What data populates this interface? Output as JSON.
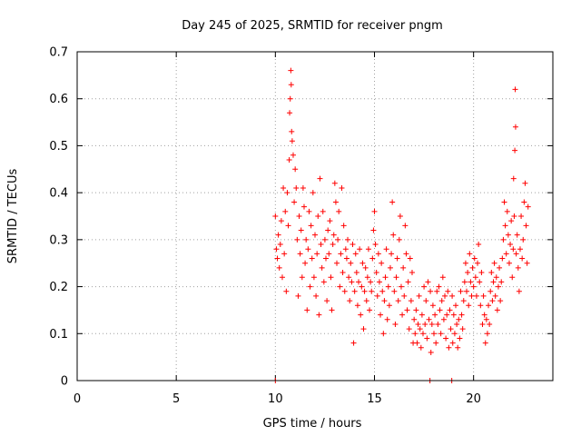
{
  "chart_data": {
    "type": "scatter",
    "title": "Day 245 of 2025, SRMTID for receiver pngm",
    "xlabel": "GPS time / hours",
    "ylabel": "SRMTID / TECUs",
    "xlim": [
      0,
      24
    ],
    "ylim": [
      0,
      0.7
    ],
    "xticks": [
      0,
      5,
      10,
      15,
      20
    ],
    "yticks": [
      0,
      0.1,
      0.2,
      0.3,
      0.4,
      0.5,
      0.6,
      0.7
    ],
    "grid": true,
    "marker": "+",
    "color": "#ff0000",
    "series": [
      {
        "name": "SRMTID",
        "points": [
          [
            10.0,
            0.0
          ],
          [
            10.0,
            0.35
          ],
          [
            10.05,
            0.28
          ],
          [
            10.1,
            0.26
          ],
          [
            10.15,
            0.31
          ],
          [
            10.2,
            0.24
          ],
          [
            10.25,
            0.29
          ],
          [
            10.3,
            0.34
          ],
          [
            10.35,
            0.22
          ],
          [
            10.4,
            0.41
          ],
          [
            10.45,
            0.27
          ],
          [
            10.5,
            0.36
          ],
          [
            10.55,
            0.19
          ],
          [
            10.6,
            0.4
          ],
          [
            10.65,
            0.33
          ],
          [
            10.7,
            0.47
          ],
          [
            10.72,
            0.57
          ],
          [
            10.75,
            0.6
          ],
          [
            10.78,
            0.66
          ],
          [
            10.8,
            0.63
          ],
          [
            10.82,
            0.53
          ],
          [
            10.85,
            0.51
          ],
          [
            10.9,
            0.48
          ],
          [
            10.95,
            0.38
          ],
          [
            11.0,
            0.45
          ],
          [
            11.05,
            0.41
          ],
          [
            11.1,
            0.3
          ],
          [
            11.15,
            0.18
          ],
          [
            11.2,
            0.35
          ],
          [
            11.25,
            0.27
          ],
          [
            11.3,
            0.32
          ],
          [
            11.35,
            0.22
          ],
          [
            11.4,
            0.41
          ],
          [
            11.45,
            0.37
          ],
          [
            11.5,
            0.25
          ],
          [
            11.55,
            0.3
          ],
          [
            11.6,
            0.15
          ],
          [
            11.65,
            0.28
          ],
          [
            11.7,
            0.36
          ],
          [
            11.75,
            0.2
          ],
          [
            11.8,
            0.33
          ],
          [
            11.85,
            0.26
          ],
          [
            11.9,
            0.4
          ],
          [
            11.95,
            0.22
          ],
          [
            12.0,
            0.31
          ],
          [
            12.05,
            0.18
          ],
          [
            12.1,
            0.27
          ],
          [
            12.15,
            0.35
          ],
          [
            12.2,
            0.14
          ],
          [
            12.25,
            0.43
          ],
          [
            12.3,
            0.29
          ],
          [
            12.35,
            0.24
          ],
          [
            12.4,
            0.36
          ],
          [
            12.45,
            0.21
          ],
          [
            12.5,
            0.3
          ],
          [
            12.55,
            0.26
          ],
          [
            12.6,
            0.17
          ],
          [
            12.65,
            0.32
          ],
          [
            12.7,
            0.27
          ],
          [
            12.75,
            0.34
          ],
          [
            12.8,
            0.22
          ],
          [
            12.85,
            0.15
          ],
          [
            12.9,
            0.29
          ],
          [
            12.95,
            0.31
          ],
          [
            13.0,
            0.42
          ],
          [
            13.05,
            0.38
          ],
          [
            13.1,
            0.25
          ],
          [
            13.15,
            0.3
          ],
          [
            13.2,
            0.36
          ],
          [
            13.25,
            0.2
          ],
          [
            13.3,
            0.27
          ],
          [
            13.35,
            0.41
          ],
          [
            13.4,
            0.23
          ],
          [
            13.45,
            0.33
          ],
          [
            13.5,
            0.19
          ],
          [
            13.55,
            0.28
          ],
          [
            13.6,
            0.26
          ],
          [
            13.65,
            0.3
          ],
          [
            13.7,
            0.22
          ],
          [
            13.75,
            0.17
          ],
          [
            13.8,
            0.25
          ],
          [
            13.85,
            0.21
          ],
          [
            13.9,
            0.29
          ],
          [
            13.95,
            0.08
          ],
          [
            14.0,
            0.19
          ],
          [
            14.05,
            0.27
          ],
          [
            14.1,
            0.23
          ],
          [
            14.15,
            0.16
          ],
          [
            14.2,
            0.21
          ],
          [
            14.25,
            0.28
          ],
          [
            14.3,
            0.14
          ],
          [
            14.35,
            0.2
          ],
          [
            14.4,
            0.25
          ],
          [
            14.45,
            0.11
          ],
          [
            14.5,
            0.19
          ],
          [
            14.55,
            0.24
          ],
          [
            14.6,
            0.17
          ],
          [
            14.65,
            0.22
          ],
          [
            14.7,
            0.28
          ],
          [
            14.75,
            0.15
          ],
          [
            14.8,
            0.21
          ],
          [
            14.85,
            0.19
          ],
          [
            14.9,
            0.26
          ],
          [
            14.95,
            0.32
          ],
          [
            15.0,
            0.36
          ],
          [
            15.05,
            0.29
          ],
          [
            15.1,
            0.23
          ],
          [
            15.15,
            0.18
          ],
          [
            15.2,
            0.27
          ],
          [
            15.25,
            0.21
          ],
          [
            15.3,
            0.14
          ],
          [
            15.35,
            0.25
          ],
          [
            15.4,
            0.19
          ],
          [
            15.45,
            0.1
          ],
          [
            15.5,
            0.17
          ],
          [
            15.55,
            0.22
          ],
          [
            15.6,
            0.28
          ],
          [
            15.65,
            0.13
          ],
          [
            15.7,
            0.2
          ],
          [
            15.75,
            0.16
          ],
          [
            15.8,
            0.24
          ],
          [
            15.85,
            0.27
          ],
          [
            15.9,
            0.38
          ],
          [
            15.95,
            0.31
          ],
          [
            16.0,
            0.19
          ],
          [
            16.05,
            0.12
          ],
          [
            16.1,
            0.22
          ],
          [
            16.15,
            0.26
          ],
          [
            16.2,
            0.17
          ],
          [
            16.25,
            0.3
          ],
          [
            16.3,
            0.35
          ],
          [
            16.35,
            0.2
          ],
          [
            16.4,
            0.14
          ],
          [
            16.45,
            0.24
          ],
          [
            16.5,
            0.18
          ],
          [
            16.55,
            0.33
          ],
          [
            16.6,
            0.27
          ],
          [
            16.65,
            0.15
          ],
          [
            16.7,
            0.21
          ],
          [
            16.75,
            0.11
          ],
          [
            16.8,
            0.26
          ],
          [
            16.85,
            0.17
          ],
          [
            16.9,
            0.23
          ],
          [
            16.95,
            0.08
          ],
          [
            17.0,
            0.13
          ],
          [
            17.05,
            0.1
          ],
          [
            17.1,
            0.15
          ],
          [
            17.15,
            0.08
          ],
          [
            17.2,
            0.12
          ],
          [
            17.25,
            0.18
          ],
          [
            17.3,
            0.11
          ],
          [
            17.35,
            0.07
          ],
          [
            17.4,
            0.14
          ],
          [
            17.45,
            0.1
          ],
          [
            17.5,
            0.2
          ],
          [
            17.55,
            0.12
          ],
          [
            17.6,
            0.17
          ],
          [
            17.65,
            0.09
          ],
          [
            17.7,
            0.21
          ],
          [
            17.75,
            0.13
          ],
          [
            17.8,
            0.0
          ],
          [
            17.82,
            0.19
          ],
          [
            17.85,
            0.06
          ],
          [
            17.9,
            0.12
          ],
          [
            17.95,
            0.16
          ],
          [
            18.0,
            0.1
          ],
          [
            18.05,
            0.14
          ],
          [
            18.1,
            0.08
          ],
          [
            18.15,
            0.19
          ],
          [
            18.2,
            0.12
          ],
          [
            18.25,
            0.2
          ],
          [
            18.3,
            0.15
          ],
          [
            18.35,
            0.1
          ],
          [
            18.4,
            0.17
          ],
          [
            18.45,
            0.22
          ],
          [
            18.5,
            0.13
          ],
          [
            18.55,
            0.18
          ],
          [
            18.6,
            0.09
          ],
          [
            18.65,
            0.14
          ],
          [
            18.7,
            0.19
          ],
          [
            18.75,
            0.07
          ],
          [
            18.8,
            0.15
          ],
          [
            18.85,
            0.11
          ],
          [
            18.9,
            0.0
          ],
          [
            18.92,
            0.18
          ],
          [
            18.95,
            0.08
          ],
          [
            19.0,
            0.14
          ],
          [
            19.05,
            0.1
          ],
          [
            19.1,
            0.16
          ],
          [
            19.15,
            0.12
          ],
          [
            19.2,
            0.07
          ],
          [
            19.25,
            0.13
          ],
          [
            19.3,
            0.09
          ],
          [
            19.35,
            0.19
          ],
          [
            19.4,
            0.14
          ],
          [
            19.45,
            0.11
          ],
          [
            19.5,
            0.17
          ],
          [
            19.55,
            0.21
          ],
          [
            19.6,
            0.25
          ],
          [
            19.65,
            0.19
          ],
          [
            19.7,
            0.23
          ],
          [
            19.75,
            0.16
          ],
          [
            19.8,
            0.27
          ],
          [
            19.85,
            0.21
          ],
          [
            19.9,
            0.18
          ],
          [
            19.95,
            0.24
          ],
          [
            20.0,
            0.2
          ],
          [
            20.05,
            0.26
          ],
          [
            20.1,
            0.22
          ],
          [
            20.15,
            0.18
          ],
          [
            20.2,
            0.25
          ],
          [
            20.25,
            0.29
          ],
          [
            20.3,
            0.21
          ],
          [
            20.35,
            0.16
          ],
          [
            20.4,
            0.23
          ],
          [
            20.45,
            0.12
          ],
          [
            20.5,
            0.18
          ],
          [
            20.55,
            0.14
          ],
          [
            20.6,
            0.08
          ],
          [
            20.65,
            0.13
          ],
          [
            20.7,
            0.1
          ],
          [
            20.75,
            0.16
          ],
          [
            20.8,
            0.12
          ],
          [
            20.85,
            0.19
          ],
          [
            20.9,
            0.23
          ],
          [
            20.95,
            0.17
          ],
          [
            21.0,
            0.21
          ],
          [
            21.05,
            0.25
          ],
          [
            21.1,
            0.18
          ],
          [
            21.15,
            0.22
          ],
          [
            21.2,
            0.15
          ],
          [
            21.25,
            0.2
          ],
          [
            21.3,
            0.24
          ],
          [
            21.35,
            0.17
          ],
          [
            21.4,
            0.21
          ],
          [
            21.45,
            0.26
          ],
          [
            21.5,
            0.3
          ],
          [
            21.55,
            0.38
          ],
          [
            21.6,
            0.33
          ],
          [
            21.65,
            0.27
          ],
          [
            21.7,
            0.36
          ],
          [
            21.75,
            0.31
          ],
          [
            21.8,
            0.25
          ],
          [
            21.85,
            0.29
          ],
          [
            21.9,
            0.34
          ],
          [
            21.95,
            0.22
          ],
          [
            22.0,
            0.28
          ],
          [
            22.02,
            0.43
          ],
          [
            22.05,
            0.35
          ],
          [
            22.08,
            0.49
          ],
          [
            22.1,
            0.62
          ],
          [
            22.12,
            0.54
          ],
          [
            22.15,
            0.27
          ],
          [
            22.2,
            0.31
          ],
          [
            22.25,
            0.24
          ],
          [
            22.3,
            0.19
          ],
          [
            22.35,
            0.28
          ],
          [
            22.4,
            0.35
          ],
          [
            22.45,
            0.26
          ],
          [
            22.5,
            0.3
          ],
          [
            22.55,
            0.38
          ],
          [
            22.6,
            0.42
          ],
          [
            22.65,
            0.33
          ],
          [
            22.7,
            0.25
          ],
          [
            22.75,
            0.37
          ]
        ]
      }
    ]
  }
}
